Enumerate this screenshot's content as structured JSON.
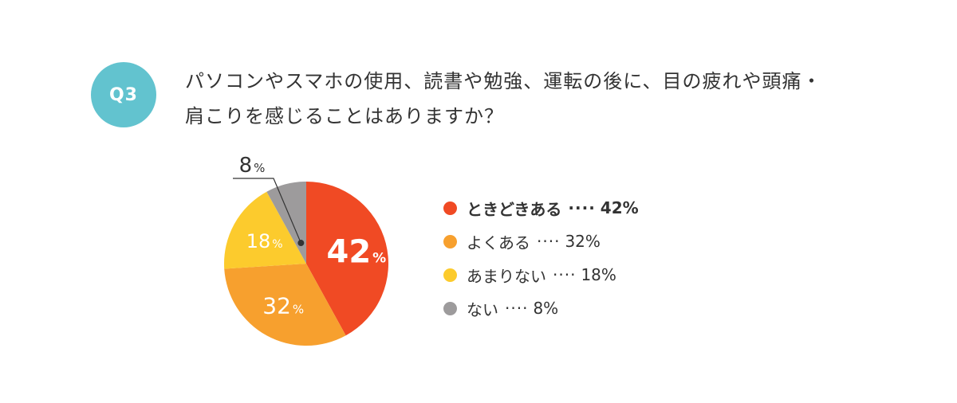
{
  "question": {
    "badge": "Q3",
    "line1": "パソコンやスマホの使用、読書や勉強、運転の後に、目の疲れや頭痛・",
    "line2": "肩こりを感じることはありますか？"
  },
  "chart_data": {
    "type": "pie",
    "title": "",
    "slices": [
      {
        "label": "ときどきある",
        "value": 42,
        "display": "42",
        "color": "#f04a24"
      },
      {
        "label": "よくある",
        "value": 32,
        "display": "32",
        "color": "#f7a02e"
      },
      {
        "label": "あまりない",
        "value": 18,
        "display": "18",
        "color": "#fccb2d"
      },
      {
        "label": "ない",
        "value": 8,
        "display": "8",
        "color": "#9d9b9c"
      }
    ],
    "unit": "%",
    "legend_position": "right",
    "start_angle": "12 o'clock, clockwise"
  },
  "legend": {
    "separator": "····",
    "items": [
      {
        "label": "ときどきある",
        "value": "42%",
        "color": "#f04a24",
        "bold": true
      },
      {
        "label": "よくある",
        "value": "32%",
        "color": "#f7a02e",
        "bold": false
      },
      {
        "label": "あまりない",
        "value": "18%",
        "color": "#fccb2d",
        "bold": false
      },
      {
        "label": "ない",
        "value": "8%",
        "color": "#9d9b9c",
        "bold": false
      }
    ]
  }
}
